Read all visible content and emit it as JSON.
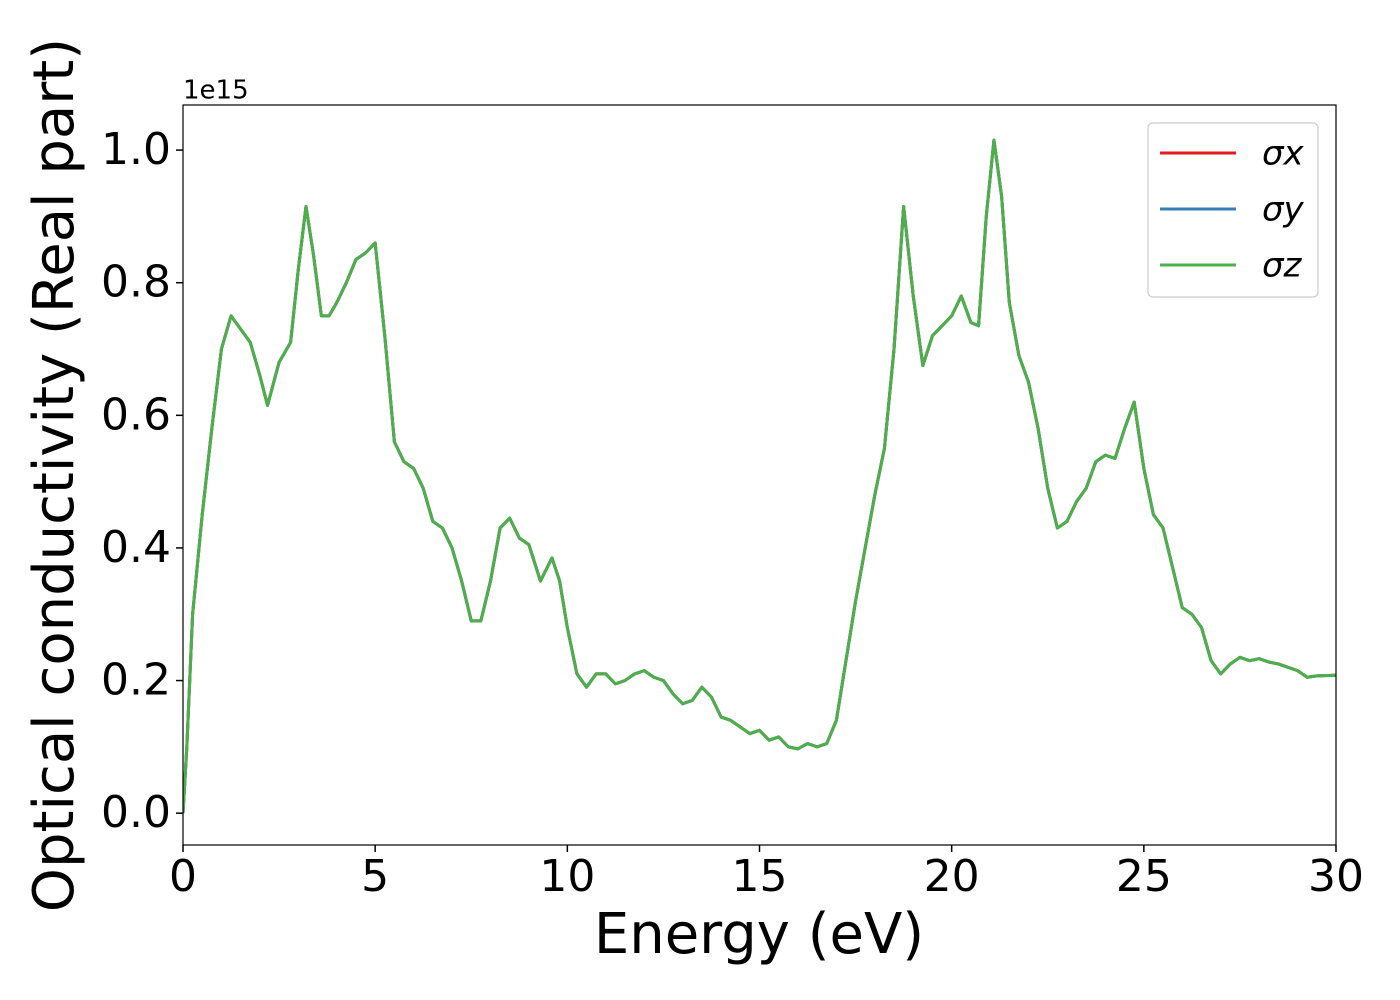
{
  "chart_data": {
    "type": "line",
    "xlabel": "Energy (eV)",
    "ylabel": "Optical conductivity (Real part)",
    "y_offset_text": "1e15",
    "x": [
      0,
      0.1,
      0.25,
      0.5,
      0.75,
      1.0,
      1.25,
      1.5,
      1.75,
      2.0,
      2.2,
      2.5,
      2.8,
      3.0,
      3.2,
      3.4,
      3.6,
      3.8,
      4.0,
      4.25,
      4.5,
      4.75,
      5.0,
      5.25,
      5.5,
      5.75,
      6.0,
      6.25,
      6.5,
      6.75,
      7.0,
      7.25,
      7.5,
      7.75,
      8.0,
      8.25,
      8.5,
      8.75,
      9.0,
      9.3,
      9.6,
      9.8,
      10.0,
      10.25,
      10.5,
      10.75,
      11.0,
      11.25,
      11.5,
      11.75,
      12.0,
      12.25,
      12.5,
      12.75,
      13.0,
      13.25,
      13.5,
      13.75,
      14.0,
      14.25,
      14.5,
      14.75,
      15.0,
      15.25,
      15.5,
      15.75,
      16.0,
      16.25,
      16.5,
      16.75,
      17.0,
      17.25,
      17.5,
      17.75,
      18.0,
      18.25,
      18.5,
      18.75,
      19.0,
      19.25,
      19.5,
      19.75,
      20.0,
      20.25,
      20.5,
      20.7,
      20.9,
      21.1,
      21.3,
      21.5,
      21.75,
      22.0,
      22.25,
      22.5,
      22.75,
      23.0,
      23.25,
      23.5,
      23.75,
      24.0,
      24.25,
      24.5,
      24.75,
      25.0,
      25.25,
      25.5,
      25.75,
      26.0,
      26.25,
      26.5,
      26.75,
      27.0,
      27.25,
      27.5,
      27.75,
      28.0,
      28.25,
      28.5,
      28.75,
      29.0,
      29.25,
      29.5,
      30.0
    ],
    "series": [
      {
        "name": "σx",
        "color": "#e41a1c",
        "values": [
          0.0,
          0.1,
          0.3,
          0.45,
          0.58,
          0.7,
          0.75,
          0.73,
          0.71,
          0.66,
          0.615,
          0.68,
          0.71,
          0.82,
          0.915,
          0.84,
          0.75,
          0.75,
          0.77,
          0.8,
          0.835,
          0.845,
          0.86,
          0.72,
          0.56,
          0.53,
          0.52,
          0.49,
          0.44,
          0.43,
          0.4,
          0.35,
          0.29,
          0.29,
          0.35,
          0.43,
          0.445,
          0.415,
          0.405,
          0.35,
          0.385,
          0.35,
          0.28,
          0.21,
          0.19,
          0.21,
          0.21,
          0.195,
          0.2,
          0.21,
          0.215,
          0.205,
          0.2,
          0.18,
          0.165,
          0.17,
          0.19,
          0.175,
          0.145,
          0.14,
          0.13,
          0.12,
          0.125,
          0.11,
          0.115,
          0.1,
          0.097,
          0.105,
          0.1,
          0.105,
          0.14,
          0.23,
          0.32,
          0.4,
          0.48,
          0.55,
          0.7,
          0.915,
          0.78,
          0.675,
          0.72,
          0.735,
          0.75,
          0.78,
          0.74,
          0.735,
          0.9,
          1.015,
          0.93,
          0.77,
          0.69,
          0.65,
          0.58,
          0.49,
          0.43,
          0.44,
          0.47,
          0.49,
          0.53,
          0.54,
          0.535,
          0.58,
          0.62,
          0.52,
          0.45,
          0.43,
          0.37,
          0.31,
          0.3,
          0.28,
          0.23,
          0.21,
          0.225,
          0.235,
          0.23,
          0.233,
          0.228,
          0.225,
          0.22,
          0.215,
          0.205,
          0.207,
          0.208
        ]
      },
      {
        "name": "σy",
        "color": "#377eb8",
        "values": [
          0.0,
          0.1,
          0.3,
          0.45,
          0.58,
          0.7,
          0.75,
          0.73,
          0.71,
          0.66,
          0.615,
          0.68,
          0.71,
          0.82,
          0.915,
          0.84,
          0.75,
          0.75,
          0.77,
          0.8,
          0.835,
          0.845,
          0.86,
          0.72,
          0.56,
          0.53,
          0.52,
          0.49,
          0.44,
          0.43,
          0.4,
          0.35,
          0.29,
          0.29,
          0.35,
          0.43,
          0.445,
          0.415,
          0.405,
          0.35,
          0.385,
          0.35,
          0.28,
          0.21,
          0.19,
          0.21,
          0.21,
          0.195,
          0.2,
          0.21,
          0.215,
          0.205,
          0.2,
          0.18,
          0.165,
          0.17,
          0.19,
          0.175,
          0.145,
          0.14,
          0.13,
          0.12,
          0.125,
          0.11,
          0.115,
          0.1,
          0.097,
          0.105,
          0.1,
          0.105,
          0.14,
          0.23,
          0.32,
          0.4,
          0.48,
          0.55,
          0.7,
          0.915,
          0.78,
          0.675,
          0.72,
          0.735,
          0.75,
          0.78,
          0.74,
          0.735,
          0.9,
          1.015,
          0.93,
          0.77,
          0.69,
          0.65,
          0.58,
          0.49,
          0.43,
          0.44,
          0.47,
          0.49,
          0.53,
          0.54,
          0.535,
          0.58,
          0.62,
          0.52,
          0.45,
          0.43,
          0.37,
          0.31,
          0.3,
          0.28,
          0.23,
          0.21,
          0.225,
          0.235,
          0.23,
          0.233,
          0.228,
          0.225,
          0.22,
          0.215,
          0.205,
          0.207,
          0.208
        ]
      },
      {
        "name": "σz",
        "color": "#4daf4a",
        "values": [
          0.0,
          0.1,
          0.3,
          0.45,
          0.58,
          0.7,
          0.75,
          0.73,
          0.71,
          0.66,
          0.615,
          0.68,
          0.71,
          0.82,
          0.915,
          0.84,
          0.75,
          0.75,
          0.77,
          0.8,
          0.835,
          0.845,
          0.86,
          0.72,
          0.56,
          0.53,
          0.52,
          0.49,
          0.44,
          0.43,
          0.4,
          0.35,
          0.29,
          0.29,
          0.35,
          0.43,
          0.445,
          0.415,
          0.405,
          0.35,
          0.385,
          0.35,
          0.28,
          0.21,
          0.19,
          0.21,
          0.21,
          0.195,
          0.2,
          0.21,
          0.215,
          0.205,
          0.2,
          0.18,
          0.165,
          0.17,
          0.19,
          0.175,
          0.145,
          0.14,
          0.13,
          0.12,
          0.125,
          0.11,
          0.115,
          0.1,
          0.097,
          0.105,
          0.1,
          0.105,
          0.14,
          0.23,
          0.32,
          0.4,
          0.48,
          0.55,
          0.7,
          0.915,
          0.78,
          0.675,
          0.72,
          0.735,
          0.75,
          0.78,
          0.74,
          0.735,
          0.9,
          1.015,
          0.93,
          0.77,
          0.69,
          0.65,
          0.58,
          0.49,
          0.43,
          0.44,
          0.47,
          0.49,
          0.53,
          0.54,
          0.535,
          0.58,
          0.62,
          0.52,
          0.45,
          0.43,
          0.37,
          0.31,
          0.3,
          0.28,
          0.23,
          0.21,
          0.225,
          0.235,
          0.23,
          0.233,
          0.228,
          0.225,
          0.22,
          0.215,
          0.205,
          0.207,
          0.208
        ]
      }
    ],
    "xlim": [
      0,
      30
    ],
    "xticks": [
      0,
      5,
      10,
      15,
      20,
      25,
      30
    ],
    "ylim": [
      -0.048,
      1.068
    ],
    "yticks": [
      {
        "value": 0,
        "label": "0.0"
      },
      0.2,
      0.4,
      0.6,
      0.8,
      {
        "value": 1,
        "label": "1.0"
      }
    ],
    "grid": false,
    "legend": "upper right"
  }
}
